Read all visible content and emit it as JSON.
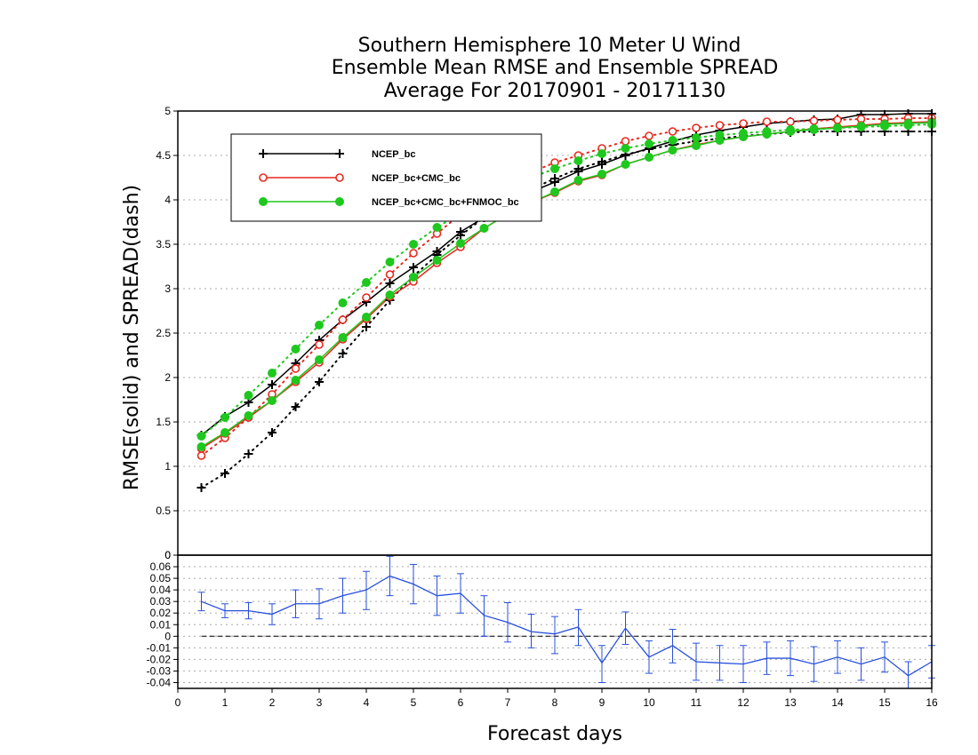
{
  "chart_data": [
    {
      "type": "line",
      "title": [
        "Southern Hemisphere 10 Meter U Wind",
        "Ensemble Mean RMSE and Ensemble SPREAD",
        "Average For 20170901 - 20171130"
      ],
      "ylabel": "RMSE(solid) and SPREAD(dash)",
      "xlabel": "Forecast days",
      "xlim": [
        0,
        16
      ],
      "ylim": [
        0,
        5
      ],
      "yticks": [
        "0",
        "0.5",
        "1",
        "1.5",
        "2",
        "2.5",
        "3",
        "3.5",
        "4",
        "4.5",
        "5"
      ],
      "grid": true,
      "legend_position": "top-left",
      "x": [
        0.5,
        1,
        1.5,
        2,
        2.5,
        3,
        3.5,
        4,
        4.5,
        5,
        5.5,
        6,
        6.5,
        7,
        7.5,
        8,
        8.5,
        9,
        9.5,
        10,
        10.5,
        11,
        11.5,
        12,
        12.5,
        13,
        13.5,
        14,
        14.5,
        15,
        15.5,
        16
      ],
      "series": [
        {
          "name": "NCEP_bc",
          "color": "#000000",
          "marker": "plus",
          "rmse": [
            1.35,
            1.56,
            1.72,
            1.92,
            2.16,
            2.42,
            2.65,
            2.85,
            3.06,
            3.24,
            3.42,
            3.64,
            3.8,
            3.96,
            4.09,
            4.2,
            4.32,
            4.4,
            4.5,
            4.58,
            4.66,
            4.73,
            4.78,
            4.82,
            4.86,
            4.88,
            4.9,
            4.91,
            4.96,
            4.96,
            4.97,
            4.97
          ],
          "spread": [
            0.76,
            0.92,
            1.14,
            1.38,
            1.67,
            1.95,
            2.27,
            2.57,
            2.87,
            3.14,
            3.38,
            3.6,
            3.8,
            3.98,
            4.12,
            4.24,
            4.35,
            4.43,
            4.51,
            4.57,
            4.62,
            4.66,
            4.69,
            4.72,
            4.74,
            4.76,
            4.77,
            4.77,
            4.77,
            4.77,
            4.77,
            4.77
          ]
        },
        {
          "name": "NCEP_bc+CMC_bc",
          "color": "#e8281e",
          "marker": "open-circle",
          "rmse": [
            1.2,
            1.37,
            1.55,
            1.74,
            1.95,
            2.17,
            2.43,
            2.66,
            2.91,
            3.08,
            3.29,
            3.47,
            3.68,
            3.84,
            3.97,
            4.08,
            4.21,
            4.28,
            4.4,
            4.48,
            4.56,
            4.62,
            4.67,
            4.71,
            4.74,
            4.77,
            4.8,
            4.82,
            4.84,
            4.86,
            4.87,
            4.88
          ],
          "spread": [
            1.12,
            1.32,
            1.55,
            1.81,
            2.1,
            2.37,
            2.65,
            2.9,
            3.16,
            3.4,
            3.62,
            3.84,
            4.04,
            4.2,
            4.31,
            4.42,
            4.5,
            4.58,
            4.66,
            4.72,
            4.77,
            4.81,
            4.84,
            4.86,
            4.88,
            4.88,
            4.89,
            4.9,
            4.91,
            4.91,
            4.92,
            4.92
          ]
        },
        {
          "name": "NCEP_bc+CMC_bc+FNMOC_bc",
          "color": "#1ec81e",
          "marker": "filled-circle",
          "rmse": [
            1.22,
            1.38,
            1.57,
            1.74,
            1.97,
            2.2,
            2.45,
            2.68,
            2.93,
            3.13,
            3.32,
            3.51,
            3.68,
            3.84,
            3.97,
            4.09,
            4.22,
            4.29,
            4.4,
            4.48,
            4.56,
            4.61,
            4.67,
            4.71,
            4.74,
            4.77,
            4.79,
            4.81,
            4.83,
            4.85,
            4.86,
            4.87
          ],
          "spread": [
            1.34,
            1.55,
            1.8,
            2.05,
            2.32,
            2.59,
            2.84,
            3.07,
            3.3,
            3.5,
            3.69,
            3.85,
            4.0,
            4.13,
            4.25,
            4.35,
            4.44,
            4.52,
            4.58,
            4.63,
            4.67,
            4.7,
            4.73,
            4.75,
            4.77,
            4.79,
            4.8,
            4.81,
            4.82,
            4.83,
            4.84,
            4.85
          ]
        }
      ]
    },
    {
      "type": "line",
      "xlim": [
        0,
        16
      ],
      "ylim": [
        -0.045,
        0.07
      ],
      "yticks": [
        "0.06",
        "0.05",
        "0.04",
        "0.03",
        "0.02",
        "0.01",
        "0",
        "-0.01",
        "-0.02",
        "-0.03",
        "-0.04"
      ],
      "top_label": "0",
      "xticks": [
        "0",
        "1",
        "2",
        "3",
        "4",
        "5",
        "6",
        "7",
        "8",
        "9",
        "10",
        "11",
        "12",
        "13",
        "14",
        "15",
        "16"
      ],
      "grid": true,
      "reference_line": 0,
      "series": [
        {
          "color": "#2850dc",
          "x": [
            0.5,
            1,
            1.5,
            2,
            2.5,
            3,
            3.5,
            4,
            4.5,
            5,
            5.5,
            6,
            6.5,
            7,
            7.5,
            8,
            8.5,
            9,
            9.5,
            10,
            10.5,
            11,
            11.5,
            12,
            12.5,
            13,
            13.5,
            14,
            14.5,
            15,
            15.5,
            16
          ],
          "values": [
            0.03,
            0.022,
            0.022,
            0.019,
            0.028,
            0.028,
            0.035,
            0.04,
            0.052,
            0.045,
            0.035,
            0.037,
            0.018,
            0.012,
            0.004,
            0.002,
            0.008,
            -0.023,
            0.007,
            -0.018,
            -0.008,
            -0.022,
            -0.023,
            -0.024,
            -0.019,
            -0.019,
            -0.024,
            -0.018,
            -0.024,
            -0.018,
            -0.034,
            -0.022
          ],
          "error_low": [
            0.022,
            0.016,
            0.015,
            0.01,
            0.016,
            0.015,
            0.02,
            0.023,
            0.035,
            0.028,
            0.018,
            0.02,
            0.0,
            -0.005,
            -0.01,
            -0.015,
            -0.008,
            -0.04,
            -0.007,
            -0.032,
            -0.023,
            -0.038,
            -0.038,
            -0.04,
            -0.033,
            -0.034,
            -0.039,
            -0.032,
            -0.038,
            -0.031,
            -0.045,
            -0.036
          ],
          "error_high": [
            0.038,
            0.028,
            0.029,
            0.028,
            0.04,
            0.041,
            0.05,
            0.056,
            0.069,
            0.062,
            0.052,
            0.054,
            0.035,
            0.029,
            0.019,
            0.017,
            0.023,
            -0.008,
            0.021,
            -0.004,
            0.006,
            -0.006,
            -0.008,
            -0.008,
            -0.005,
            -0.004,
            -0.009,
            -0.004,
            -0.01,
            -0.005,
            -0.022,
            -0.008
          ]
        }
      ]
    }
  ]
}
